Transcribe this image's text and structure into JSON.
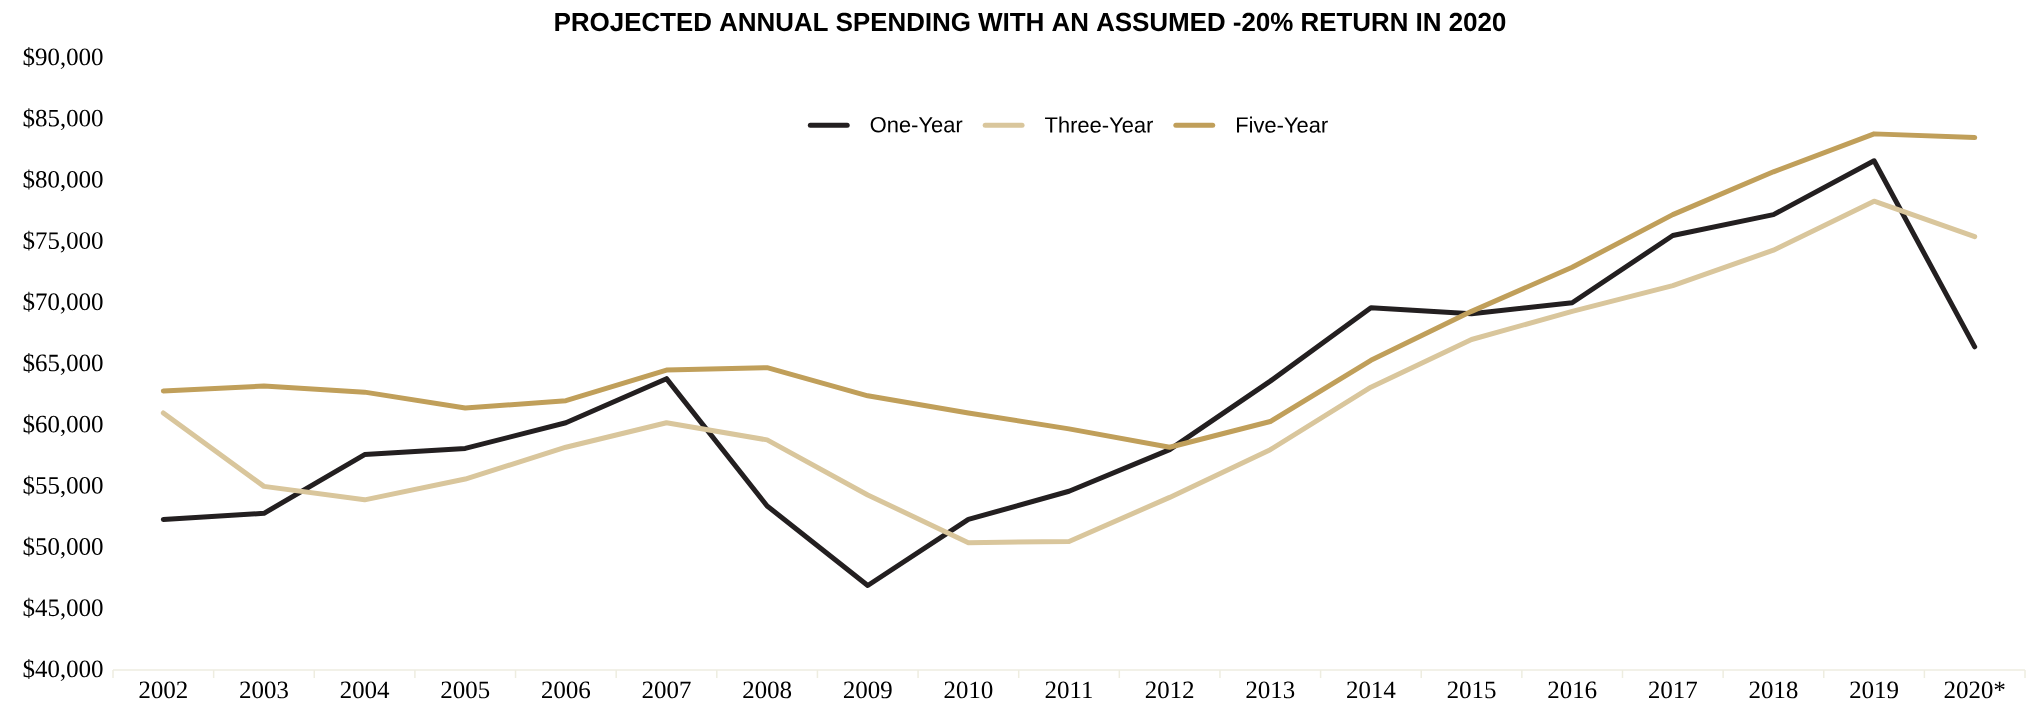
{
  "chart_data": {
    "type": "line",
    "title": "PROJECTED ANNUAL SPENDING WITH AN ASSUMED -20% RETURN IN 2020",
    "categories": [
      "2002",
      "2003",
      "2004",
      "2005",
      "2006",
      "2007",
      "2008",
      "2009",
      "2010",
      "2011",
      "2012",
      "2013",
      "2014",
      "2015",
      "2016",
      "2017",
      "2018",
      "2019",
      "2020*"
    ],
    "series": [
      {
        "name": "One-Year",
        "color": "#231f20",
        "values": [
          52300,
          52800,
          57600,
          58100,
          60200,
          63800,
          53400,
          46900,
          52300,
          54600,
          58000,
          63600,
          69600,
          69100,
          70000,
          75500,
          77200,
          81600,
          66400
        ]
      },
      {
        "name": "Three-Year",
        "color": "#d9c69c",
        "values": [
          61000,
          55000,
          53900,
          55600,
          58200,
          60200,
          58800,
          54300,
          50400,
          50500,
          54100,
          58000,
          63100,
          67000,
          69300,
          71400,
          74300,
          78300,
          75400
        ]
      },
      {
        "name": "Five-Year",
        "color": "#c09f5a",
        "values": [
          62800,
          63200,
          62700,
          61400,
          62000,
          64500,
          64700,
          62400,
          61000,
          59700,
          58200,
          60300,
          65300,
          69300,
          72900,
          77200,
          80700,
          83800,
          83500
        ]
      }
    ],
    "ylim": [
      40000,
      90000
    ],
    "yticks": [
      {
        "value": 40000,
        "label": "$40,000"
      },
      {
        "value": 45000,
        "label": "$45,000"
      },
      {
        "value": 50000,
        "label": "$50,000"
      },
      {
        "value": 55000,
        "label": "$55,000"
      },
      {
        "value": 60000,
        "label": "$60,000"
      },
      {
        "value": 65000,
        "label": "$65,000"
      },
      {
        "value": 70000,
        "label": "$70,000"
      },
      {
        "value": 75000,
        "label": "$75,000"
      },
      {
        "value": 80000,
        "label": "$80,000"
      },
      {
        "value": 85000,
        "label": "$85,000"
      },
      {
        "value": 90000,
        "label": "$90,000"
      }
    ],
    "legend": "top",
    "line_style": "solid"
  }
}
